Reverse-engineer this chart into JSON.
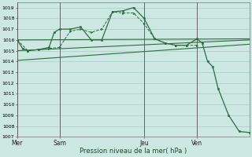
{
  "bg_color": "#cde8e2",
  "grid_color": "#a8cdc7",
  "line_color": "#2d6e3e",
  "title": "Pression niveau de la mer( hPa )",
  "ylim": [
    1007,
    1019.5
  ],
  "yticks": [
    1007,
    1008,
    1009,
    1010,
    1011,
    1012,
    1013,
    1014,
    1015,
    1016,
    1017,
    1018,
    1019
  ],
  "day_labels": [
    "Mer",
    "Sam",
    "Jeu",
    "Ven"
  ],
  "day_positions": [
    0,
    8,
    24,
    34
  ],
  "xlim": [
    0,
    44
  ],
  "trend1_x": [
    0,
    44
  ],
  "trend1_y": [
    1016.0,
    1016.1
  ],
  "trend2_x": [
    0,
    44
  ],
  "trend2_y": [
    1015.0,
    1016.0
  ],
  "trend3_x": [
    0,
    44
  ],
  "trend3_y": [
    1014.1,
    1015.6
  ],
  "dashed_x": [
    0,
    2,
    4,
    6,
    8,
    10,
    12,
    14,
    16,
    18,
    20,
    22,
    24,
    26,
    28,
    30,
    32,
    34
  ],
  "dashed_y": [
    1016.0,
    1015.0,
    1015.1,
    1015.2,
    1015.3,
    1016.8,
    1017.0,
    1016.7,
    1017.0,
    1018.6,
    1018.5,
    1018.5,
    1017.5,
    1016.1,
    1015.7,
    1015.5,
    1015.5,
    1015.5
  ],
  "main_x": [
    0,
    1,
    2,
    4,
    6,
    7,
    8,
    10,
    12,
    14,
    16,
    18,
    20,
    22,
    24,
    26,
    28,
    30,
    32,
    34,
    35,
    36,
    37,
    38,
    40,
    42,
    44
  ],
  "main_y": [
    1016.0,
    1015.2,
    1015.0,
    1015.1,
    1015.3,
    1016.7,
    1017.0,
    1017.0,
    1017.2,
    1016.0,
    1016.0,
    1018.6,
    1018.7,
    1019.0,
    1018.0,
    1016.1,
    1015.7,
    1015.5,
    1015.5,
    1016.1,
    1015.7,
    1014.0,
    1013.5,
    1011.5,
    1009.0,
    1007.5,
    1007.4
  ]
}
